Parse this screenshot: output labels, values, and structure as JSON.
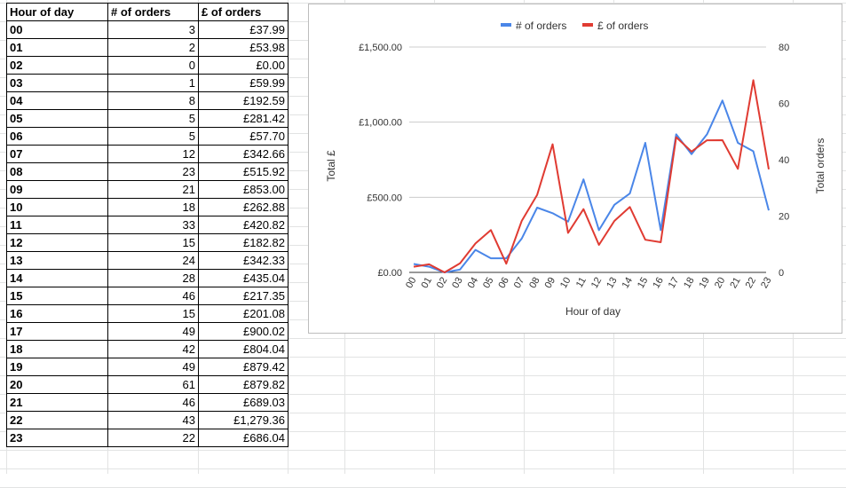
{
  "table": {
    "headers": [
      "Hour of day",
      "# of orders",
      "£ of orders"
    ],
    "rows": [
      [
        "00",
        "3",
        "£37.99"
      ],
      [
        "01",
        "2",
        "£53.98"
      ],
      [
        "02",
        "0",
        "£0.00"
      ],
      [
        "03",
        "1",
        "£59.99"
      ],
      [
        "04",
        "8",
        "£192.59"
      ],
      [
        "05",
        "5",
        "£281.42"
      ],
      [
        "06",
        "5",
        "£57.70"
      ],
      [
        "07",
        "12",
        "£342.66"
      ],
      [
        "08",
        "23",
        "£515.92"
      ],
      [
        "09",
        "21",
        "£853.00"
      ],
      [
        "10",
        "18",
        "£262.88"
      ],
      [
        "11",
        "33",
        "£420.82"
      ],
      [
        "12",
        "15",
        "£182.82"
      ],
      [
        "13",
        "24",
        "£342.33"
      ],
      [
        "14",
        "28",
        "£435.04"
      ],
      [
        "15",
        "46",
        "£217.35"
      ],
      [
        "16",
        "15",
        "£201.08"
      ],
      [
        "17",
        "49",
        "£900.02"
      ],
      [
        "18",
        "42",
        "£804.04"
      ],
      [
        "19",
        "49",
        "£879.42"
      ],
      [
        "20",
        "61",
        "£879.82"
      ],
      [
        "21",
        "46",
        "£689.03"
      ],
      [
        "22",
        "43",
        "£1,279.36"
      ],
      [
        "23",
        "22",
        "£686.04"
      ]
    ]
  },
  "colors": {
    "orders": "#4a86e8",
    "revenue": "#e03b32",
    "axis": "#333333",
    "grid": "#cccccc"
  },
  "chart_data": {
    "type": "line",
    "x": [
      "00",
      "01",
      "02",
      "03",
      "04",
      "05",
      "06",
      "07",
      "08",
      "09",
      "10",
      "11",
      "12",
      "13",
      "14",
      "15",
      "16",
      "17",
      "18",
      "19",
      "20",
      "21",
      "22",
      "23"
    ],
    "series": [
      {
        "name": "# of orders",
        "axis": "right",
        "values": [
          3,
          2,
          0,
          1,
          8,
          5,
          5,
          12,
          23,
          21,
          18,
          33,
          15,
          24,
          28,
          46,
          15,
          49,
          42,
          49,
          61,
          46,
          43,
          22
        ]
      },
      {
        "name": "£ of orders",
        "axis": "left",
        "values": [
          37.99,
          53.98,
          0,
          59.99,
          192.59,
          281.42,
          57.7,
          342.66,
          515.92,
          853.0,
          262.88,
          420.82,
          182.82,
          342.33,
          435.04,
          217.35,
          201.08,
          900.02,
          804.04,
          879.42,
          879.82,
          689.03,
          1279.36,
          686.04
        ]
      }
    ],
    "xlabel": "Hour of day",
    "ylabel_left": "Total £",
    "ylabel_right": "Total orders",
    "left_ticks": [
      {
        "v": 0,
        "label": "£0.00"
      },
      {
        "v": 500,
        "label": "£500.00"
      },
      {
        "v": 1000,
        "label": "£1,000.00"
      },
      {
        "v": 1500,
        "label": "£1,500.00"
      }
    ],
    "right_ticks": [
      {
        "v": 0,
        "label": "0"
      },
      {
        "v": 20,
        "label": "20"
      },
      {
        "v": 40,
        "label": "40"
      },
      {
        "v": 60,
        "label": "60"
      },
      {
        "v": 80,
        "label": "80"
      }
    ],
    "ylim_left": [
      0,
      1500
    ],
    "ylim_right": [
      0,
      80
    ],
    "legend_position": "top-center",
    "grid": true
  }
}
